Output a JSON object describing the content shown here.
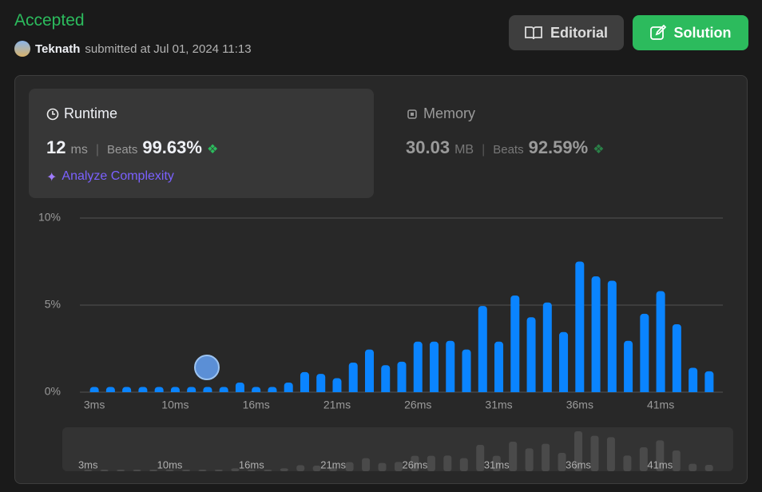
{
  "header": {
    "status": "Accepted",
    "user": "Teknath",
    "submitted": "submitted at Jul 01, 2024 11:13",
    "buttons": [
      "Editorial",
      "Solution"
    ]
  },
  "runtime": {
    "label": "Runtime",
    "value": 12,
    "unit": "ms",
    "beats_label": "Beats",
    "beats": "99.63%",
    "analyze": "Analyze Complexity"
  },
  "memory": {
    "label": "Memory",
    "value": 30.03,
    "unit": "MB",
    "beats_label": "Beats",
    "beats": "92.59%"
  },
  "chart_data": {
    "type": "bar",
    "color": "#0a84ff",
    "categories": [
      "3ms",
      null,
      null,
      null,
      null,
      "10ms",
      null,
      null,
      null,
      null,
      "16ms",
      null,
      null,
      null,
      null,
      "21ms",
      null,
      null,
      null,
      null,
      "26ms",
      null,
      null,
      null,
      null,
      "31ms",
      null,
      null,
      null,
      null,
      "36ms",
      null,
      null,
      null,
      null,
      "41ms",
      null,
      null,
      null
    ],
    "values": [
      0.3,
      0.3,
      0.3,
      0.3,
      0.3,
      0.3,
      0.3,
      0.3,
      0.3,
      0.55,
      0.3,
      0.3,
      0.55,
      1.15,
      1.05,
      0.8,
      1.7,
      2.45,
      1.55,
      1.75,
      2.9,
      2.9,
      2.95,
      2.45,
      4.95,
      2.9,
      5.55,
      4.3,
      5.15,
      3.45,
      7.5,
      6.65,
      6.4,
      2.95,
      4.5,
      5.8,
      3.9,
      1.4,
      1.2
    ],
    "ylim": [
      0,
      10
    ],
    "yticks": [
      {
        "value": 0,
        "label": "0%"
      },
      {
        "value": 5,
        "label": "5%"
      },
      {
        "value": 10,
        "label": "10%"
      }
    ],
    "grid": true
  }
}
